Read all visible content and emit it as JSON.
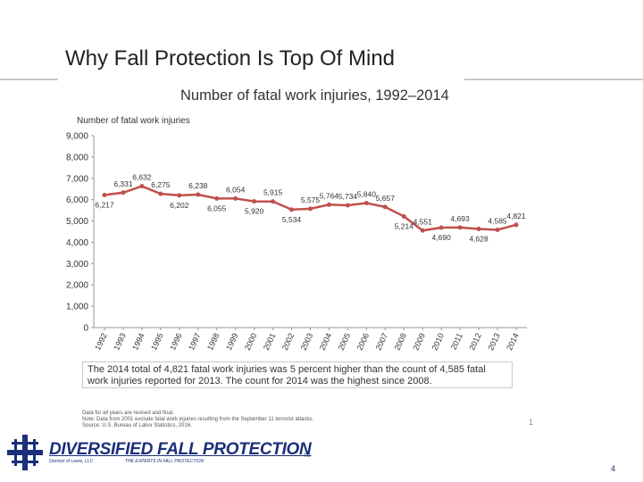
{
  "slide": {
    "title": "Why Fall Protection Is Top Of Mind",
    "page_number": "4"
  },
  "chart_data": {
    "type": "line",
    "title": "Number of fatal work injuries, 1992–2014",
    "ylabel": "Number of fatal work injuries",
    "xlabel": "",
    "ylim": [
      0,
      9000
    ],
    "yticks": [
      "9,000",
      "8,000",
      "7,000",
      "6,000",
      "5,000",
      "4,000",
      "3,000",
      "2,000",
      "1,000",
      "0"
    ],
    "categories": [
      "1992",
      "1993",
      "1994",
      "1995",
      "1996",
      "1997",
      "1998",
      "1999",
      "2000",
      "2001",
      "2002",
      "2003",
      "2004",
      "2005",
      "2006",
      "2007",
      "2008",
      "2009",
      "2010",
      "2011",
      "2012",
      "2013",
      "2014"
    ],
    "values": [
      6217,
      6331,
      6632,
      6275,
      6202,
      6238,
      6055,
      6054,
      5920,
      5915,
      5534,
      5575,
      5764,
      5734,
      5840,
      5657,
      5214,
      4551,
      4690,
      4693,
      4628,
      4585,
      4821
    ],
    "data_labels": [
      "6,217",
      "6,331",
      "6,632",
      "6,275",
      "6,202",
      "6,238",
      "6,055",
      "6,054",
      "5,920",
      "5,915",
      "5,534",
      "5,575",
      "5,764",
      "5,734",
      "5,840",
      "5,657",
      "5,214",
      "4,551",
      "4,690",
      "4,693",
      "4,628",
      "4,585",
      "4,821"
    ],
    "line_color": "#c0504d",
    "grid": false
  },
  "note": "The 2014 total of 4,821 fatal work injuries was 5 percent higher than the count of 4,585 fatal work injuries reported for 2013. The count for 2014 was the highest since 2008.",
  "footnotes": [
    "Data for all years are revised and final.",
    "Note: Data from 2001 exclude fatal work injuries resulting from the September 11 terrorist attacks.",
    "Source: U.S. Bureau of Labor Statistics, 2016."
  ],
  "source_page": "1",
  "brand": {
    "name": "DIVERSIFIED FALL PROTECTION",
    "tm": "TM",
    "subline_left": "Division of Lewis, LLC",
    "subline_right": "THE EXPERTS IN FALL PROTECTION"
  }
}
